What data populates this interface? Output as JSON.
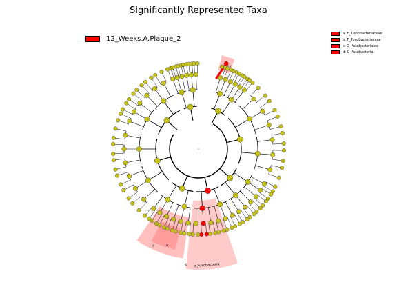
{
  "title": "Significantly Represented Taxa",
  "class_legend": {
    "label": "12_Weeks.A.Plaque_2",
    "color": "#ff0000"
  },
  "taxa_legend": [
    {
      "key": "a",
      "label": "a: F_Coriobacteriaceae"
    },
    {
      "key": "b",
      "label": "b: F_Fusobacteriaceae"
    },
    {
      "key": "c",
      "label": "c: O_Fusobacteriales"
    },
    {
      "key": "d",
      "label": "d: C_Fusobacteria"
    }
  ],
  "clade_labels": [
    {
      "key": "a",
      "text": "a"
    },
    {
      "key": "b",
      "text": "b"
    },
    {
      "key": "c",
      "text": "c"
    },
    {
      "key": "d",
      "text": "d"
    },
    {
      "key": "phylum",
      "text": "p_Fusobacteria"
    }
  ],
  "colors": {
    "node": "#c5c11a",
    "significant": "#ff0000",
    "highlight": "#ff8080",
    "edge": "#000000"
  }
}
